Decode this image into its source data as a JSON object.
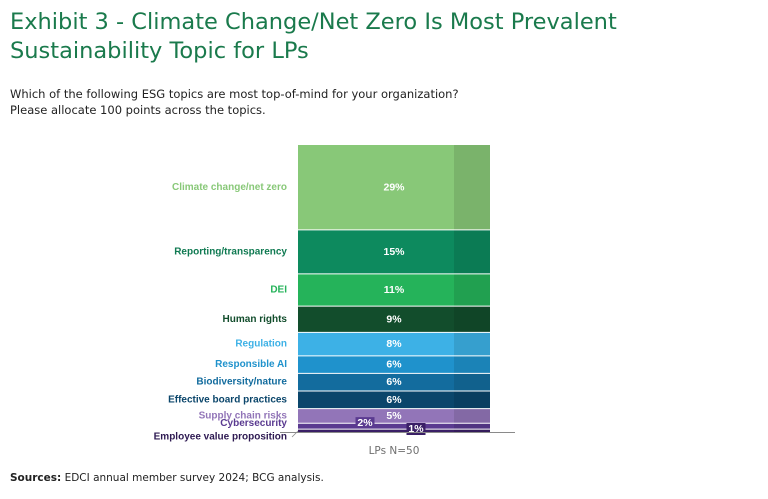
{
  "title": "Exhibit 3 - Climate Change/Net Zero Is Most Prevalent Sustainability Topic for LPs",
  "subtitle": {
    "line1": "Which of the following ESG topics are most top-of-mind for your organization?",
    "line2": "Please allocate 100 points across the topics."
  },
  "source": {
    "label": "Sources:",
    "text": "EDCI annual member survey 2024; BCG analysis."
  },
  "chart_data": {
    "type": "bar",
    "stacked": true,
    "xlabel": "LPs N=50",
    "categories": [
      "LPs N=50"
    ],
    "value_unit": "%",
    "series": [
      {
        "name": "Climate change/net zero",
        "value": 29,
        "label": "29%",
        "color": "#88c878",
        "label_color": "#88c878"
      },
      {
        "name": "Reporting/transparency",
        "value": 15,
        "label": "15%",
        "color": "#0d8a5e",
        "label_color": "#107a52"
      },
      {
        "name": "DEI",
        "value": 11,
        "label": "11%",
        "color": "#25b35a",
        "label_color": "#25b35a"
      },
      {
        "name": "Human rights",
        "value": 9,
        "label": "9%",
        "color": "#124d2c",
        "label_color": "#124d2c"
      },
      {
        "name": "Regulation",
        "value": 8,
        "label": "8%",
        "color": "#3db1e6",
        "label_color": "#3db1e6"
      },
      {
        "name": "Responsible AI",
        "value": 6,
        "label": "6%",
        "color": "#1f92cc",
        "label_color": "#1f92cc"
      },
      {
        "name": "Biodiversity/nature",
        "value": 6,
        "label": "6%",
        "color": "#136c9e",
        "label_color": "#136c9e"
      },
      {
        "name": "Effective board practices",
        "value": 6,
        "label": "6%",
        "color": "#0b466b",
        "label_color": "#0b466b"
      },
      {
        "name": "Supply chain risks",
        "value": 5,
        "label": "5%",
        "color": "#9275b8",
        "label_color": "#9275b8"
      },
      {
        "name": "Cybersecurity",
        "value": 2,
        "label": "2%",
        "color": "#5a3a90",
        "label_color": "#5a3a90"
      },
      {
        "name": "Employee value proposition",
        "value": 1,
        "label": "1%",
        "color": "#3a1f66",
        "label_color": "#2e1a52"
      }
    ]
  }
}
